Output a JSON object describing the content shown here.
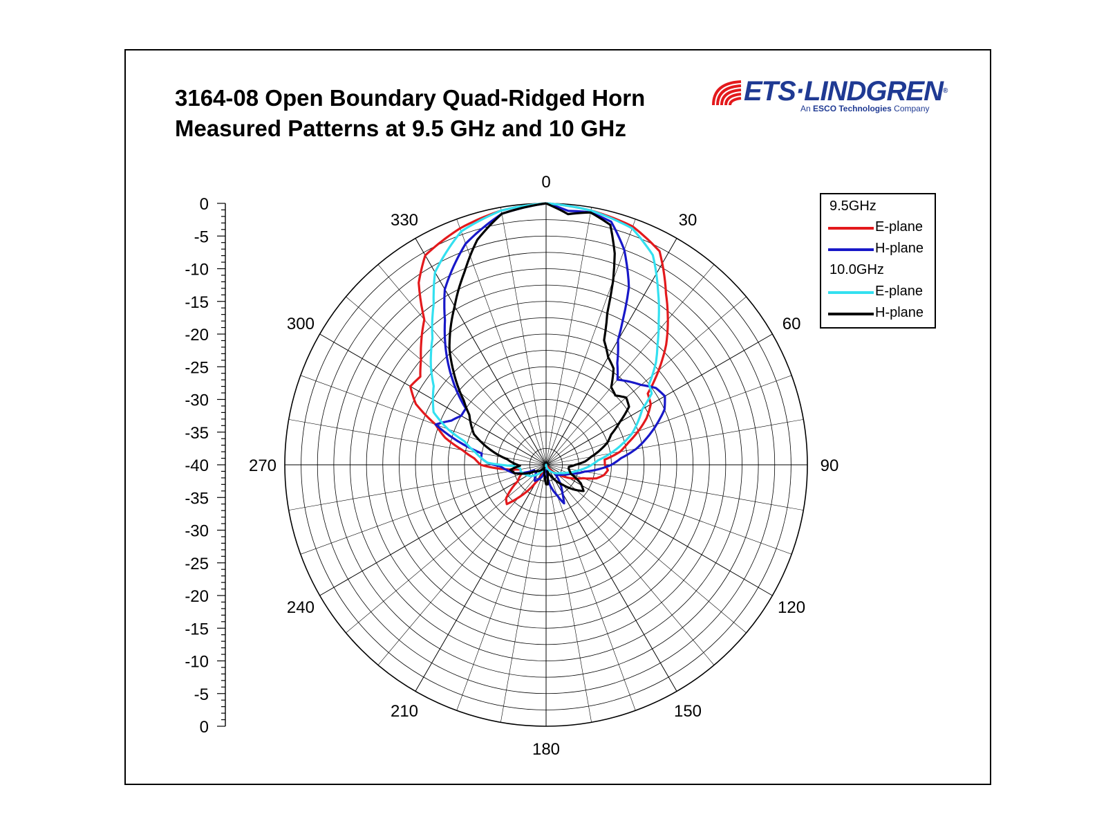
{
  "header": {
    "title_line1": "3164-08 Open Boundary Quad-Ridged Horn",
    "title_line2": "Measured Patterns at 9.5 GHz and 10 GHz"
  },
  "logo": {
    "name": "ETS·LINDGREN",
    "reg": "®",
    "tagline_pre": "An ",
    "tagline_bold": "ESCO Technologies",
    "tagline_post": " Company"
  },
  "legend": {
    "group1": "9.5GHz",
    "group2": "10.0GHz",
    "e_plane": "E-plane",
    "h_plane": "H-plane"
  },
  "chart_data": {
    "type": "polar-line",
    "title": "3164-08 Open Boundary Quad-Ridged Horn Measured Patterns at 9.5 GHz and 10 GHz",
    "radial_axis": {
      "range": [
        -40,
        0
      ],
      "ticks": [
        "0",
        "-5",
        "-10",
        "-15",
        "-20",
        "-25",
        "-30",
        "-35",
        "-40",
        "-35",
        "-30",
        "-25",
        "-20",
        "-15",
        "-10",
        "-5",
        "0"
      ],
      "unit": ""
    },
    "angular_axis": {
      "ticks": [
        "0",
        "30",
        "60",
        "90",
        "120",
        "150",
        "180",
        "210",
        "240",
        "270",
        "300",
        "330"
      ],
      "direction": "clockwise",
      "zero": "top"
    },
    "grid": true,
    "legend_position": "top-right",
    "series": [
      {
        "name": "E-plane",
        "group": "9.5GHz",
        "color": "#e3191c",
        "points": [
          [
            0,
            0
          ],
          [
            10,
            -0.5
          ],
          [
            20,
            -1.2
          ],
          [
            28,
            -3
          ],
          [
            35,
            -8
          ],
          [
            40,
            -11
          ],
          [
            45,
            -14
          ],
          [
            50,
            -17.5
          ],
          [
            55,
            -21
          ],
          [
            60,
            -21.5
          ],
          [
            65,
            -23
          ],
          [
            70,
            -25
          ],
          [
            75,
            -27
          ],
          [
            80,
            -28.5
          ],
          [
            85,
            -31
          ],
          [
            90,
            -31
          ],
          [
            95,
            -30.5
          ],
          [
            100,
            -31
          ],
          [
            105,
            -32
          ],
          [
            110,
            -34
          ],
          [
            120,
            -36
          ],
          [
            130,
            -38
          ],
          [
            150,
            -40
          ],
          [
            180,
            -40
          ],
          [
            200,
            -39
          ],
          [
            210,
            -37
          ],
          [
            220,
            -33.5
          ],
          [
            225,
            -31.5
          ],
          [
            230,
            -32
          ],
          [
            240,
            -35
          ],
          [
            250,
            -36
          ],
          [
            260,
            -36
          ],
          [
            265,
            -33
          ],
          [
            270,
            -30
          ],
          [
            275,
            -29
          ],
          [
            280,
            -27
          ],
          [
            285,
            -24
          ],
          [
            290,
            -22
          ],
          [
            295,
            -18
          ],
          [
            300,
            -16
          ],
          [
            305,
            -16.5
          ],
          [
            310,
            -15
          ],
          [
            315,
            -13
          ],
          [
            320,
            -11
          ],
          [
            325,
            -6
          ],
          [
            330,
            -3
          ],
          [
            340,
            -1.5
          ],
          [
            350,
            -0.5
          ],
          [
            360,
            0
          ]
        ]
      },
      {
        "name": "H-plane",
        "group": "9.5GHz",
        "color": "#1818c8",
        "points": [
          [
            0,
            0
          ],
          [
            5,
            -1
          ],
          [
            10,
            -0.8
          ],
          [
            15,
            -1.5
          ],
          [
            20,
            -5
          ],
          [
            25,
            -10
          ],
          [
            28,
            -15
          ],
          [
            30,
            -18
          ],
          [
            35,
            -21
          ],
          [
            40,
            -23
          ],
          [
            45,
            -22
          ],
          [
            50,
            -21
          ],
          [
            55,
            -19.5
          ],
          [
            60,
            -19
          ],
          [
            65,
            -20
          ],
          [
            70,
            -22
          ],
          [
            75,
            -24
          ],
          [
            80,
            -26
          ],
          [
            85,
            -28.5
          ],
          [
            90,
            -30
          ],
          [
            95,
            -32
          ],
          [
            100,
            -34
          ],
          [
            110,
            -36
          ],
          [
            120,
            -37
          ],
          [
            135,
            -38
          ],
          [
            150,
            -35
          ],
          [
            155,
            -33.5
          ],
          [
            160,
            -35
          ],
          [
            170,
            -37
          ],
          [
            180,
            -40
          ],
          [
            200,
            -38
          ],
          [
            215,
            -37
          ],
          [
            230,
            -38
          ],
          [
            245,
            -38
          ],
          [
            255,
            -35
          ],
          [
            262,
            -34
          ],
          [
            268,
            -33
          ],
          [
            272,
            -31
          ],
          [
            276,
            -30
          ],
          [
            280,
            -30
          ],
          [
            285,
            -26
          ],
          [
            290,
            -22
          ],
          [
            295,
            -24
          ],
          [
            300,
            -25
          ],
          [
            305,
            -25
          ],
          [
            310,
            -22
          ],
          [
            315,
            -19
          ],
          [
            320,
            -16
          ],
          [
            325,
            -13
          ],
          [
            330,
            -9
          ],
          [
            340,
            -4
          ],
          [
            350,
            -1
          ],
          [
            360,
            0
          ]
        ]
      },
      {
        "name": "E-plane",
        "group": "10.0GHz",
        "color": "#33e0f0",
        "points": [
          [
            0,
            0
          ],
          [
            10,
            -0.5
          ],
          [
            20,
            -1.5
          ],
          [
            27,
            -4
          ],
          [
            33,
            -8.5
          ],
          [
            38,
            -12
          ],
          [
            43,
            -15
          ],
          [
            47,
            -17
          ],
          [
            52,
            -20
          ],
          [
            56,
            -20.5
          ],
          [
            60,
            -23
          ],
          [
            65,
            -24.5
          ],
          [
            70,
            -26
          ],
          [
            75,
            -28
          ],
          [
            80,
            -30
          ],
          [
            85,
            -32
          ],
          [
            90,
            -33
          ],
          [
            95,
            -34
          ],
          [
            100,
            -35
          ],
          [
            110,
            -36.5
          ],
          [
            120,
            -37.5
          ],
          [
            150,
            -39
          ],
          [
            180,
            -40
          ],
          [
            210,
            -39
          ],
          [
            235,
            -37
          ],
          [
            255,
            -36
          ],
          [
            262,
            -36
          ],
          [
            268,
            -35
          ],
          [
            272,
            -31
          ],
          [
            276,
            -30
          ],
          [
            280,
            -29
          ],
          [
            286,
            -27
          ],
          [
            290,
            -24
          ],
          [
            295,
            -21
          ],
          [
            300,
            -20
          ],
          [
            305,
            -19
          ],
          [
            310,
            -17
          ],
          [
            318,
            -14
          ],
          [
            325,
            -10
          ],
          [
            330,
            -6
          ],
          [
            340,
            -2
          ],
          [
            350,
            -0.5
          ],
          [
            360,
            0
          ]
        ]
      },
      {
        "name": "H-plane",
        "group": "10.0GHz",
        "color": "#000000",
        "points": [
          [
            0,
            0
          ],
          [
            5,
            -1.5
          ],
          [
            10,
            -0.8
          ],
          [
            15,
            -2
          ],
          [
            18,
            -6
          ],
          [
            20,
            -10
          ],
          [
            22,
            -15
          ],
          [
            25,
            -19
          ],
          [
            30,
            -21
          ],
          [
            35,
            -22
          ],
          [
            40,
            -24.5
          ],
          [
            45,
            -25
          ],
          [
            50,
            -24
          ],
          [
            55,
            -24.5
          ],
          [
            60,
            -27
          ],
          [
            65,
            -29
          ],
          [
            70,
            -30
          ],
          [
            75,
            -31.5
          ],
          [
            80,
            -33
          ],
          [
            85,
            -34
          ],
          [
            90,
            -35.5
          ],
          [
            95,
            -36.5
          ],
          [
            100,
            -36.5
          ],
          [
            110,
            -36
          ],
          [
            118,
            -34
          ],
          [
            125,
            -33
          ],
          [
            130,
            -34
          ],
          [
            140,
            -36
          ],
          [
            155,
            -38
          ],
          [
            170,
            -39
          ],
          [
            175,
            -37
          ],
          [
            180,
            -37
          ],
          [
            185,
            -38
          ],
          [
            195,
            -39
          ],
          [
            210,
            -39.5
          ],
          [
            240,
            -38
          ],
          [
            255,
            -35
          ],
          [
            262,
            -34.5
          ],
          [
            268,
            -36
          ],
          [
            273,
            -35
          ],
          [
            278,
            -34
          ],
          [
            283,
            -32
          ],
          [
            288,
            -30
          ],
          [
            293,
            -28
          ],
          [
            298,
            -27
          ],
          [
            303,
            -26
          ],
          [
            308,
            -24
          ],
          [
            315,
            -20
          ],
          [
            320,
            -17
          ],
          [
            330,
            -12
          ],
          [
            337,
            -8
          ],
          [
            343,
            -4
          ],
          [
            350,
            -1
          ],
          [
            360,
            0
          ]
        ]
      }
    ]
  }
}
